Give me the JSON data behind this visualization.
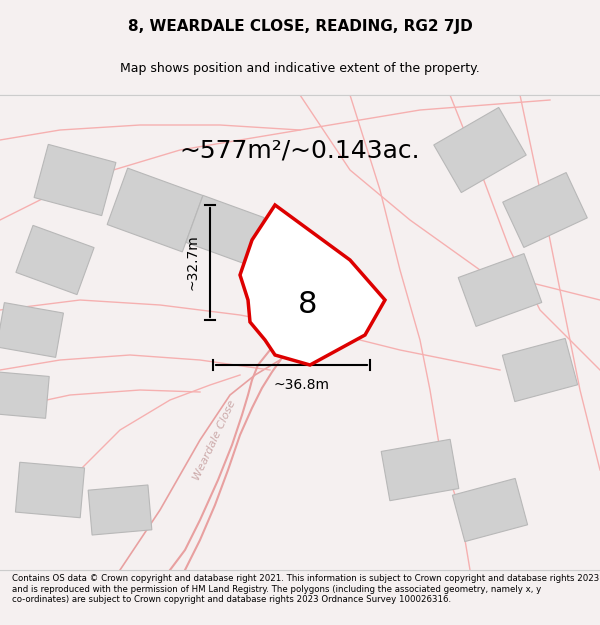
{
  "title_line1": "8, WEARDALE CLOSE, READING, RG2 7JD",
  "title_line2": "Map shows position and indicative extent of the property.",
  "area_text": "~577m²/~0.143ac.",
  "dim_vertical": "~32.7m",
  "dim_horizontal": "~36.8m",
  "property_number": "8",
  "footer_text": "Contains OS data © Crown copyright and database right 2021. This information is subject to Crown copyright and database rights 2023 and is reproduced with the permission of HM Land Registry. The polygons (including the associated geometry, namely x, y co-ordinates) are subject to Crown copyright and database rights 2023 Ordnance Survey 100026316.",
  "bg_color": "#f5f0f0",
  "map_bg": "#f5f0f0",
  "road_color": "#f0c0c0",
  "building_color": "#d8d8d8",
  "building_edge": "#b0b0b0",
  "plot_color": "#ff0000",
  "plot_fill": "#ffffff",
  "street_label": "Weardale Close",
  "figsize": [
    6.0,
    6.25
  ],
  "dpi": 100
}
